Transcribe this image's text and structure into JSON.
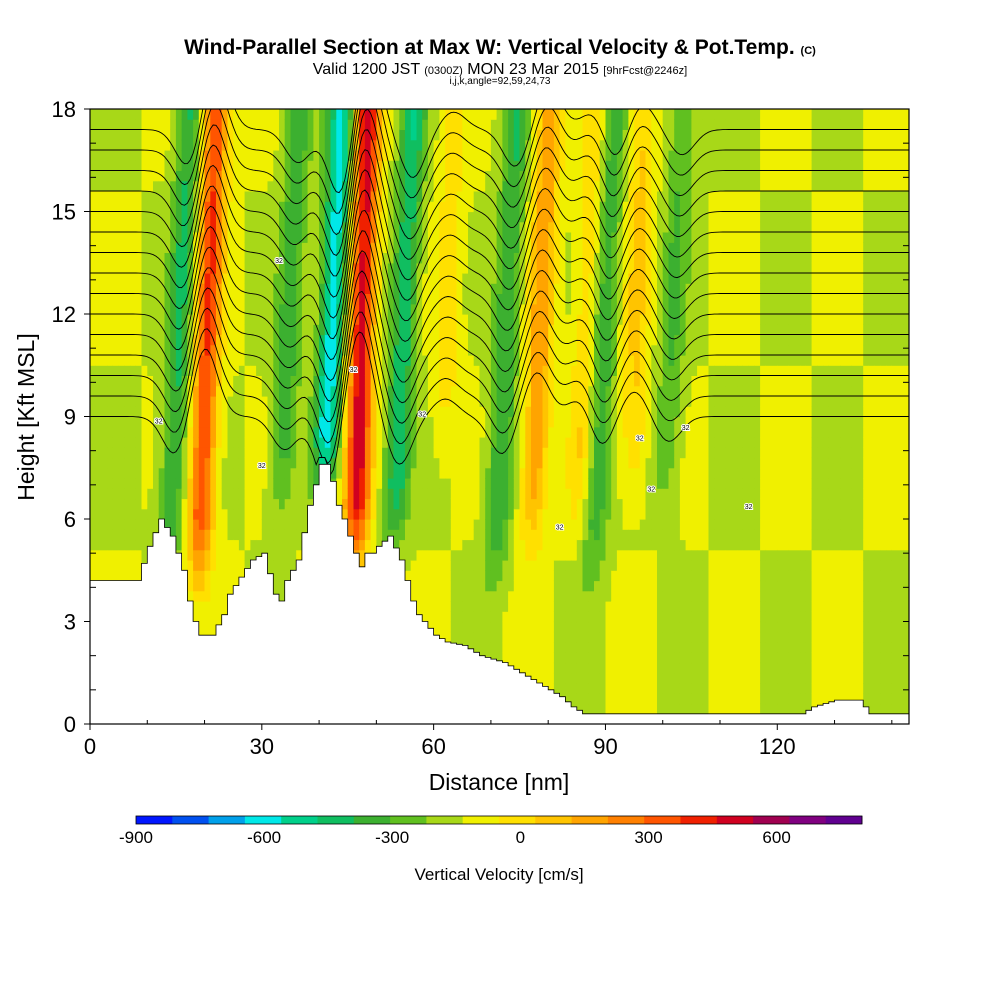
{
  "chart_data": {
    "type": "heatmap",
    "title": "Wind-Parallel Section at Max W: Vertical Velocity & Pot.Temp.",
    "title_mark": "(C)",
    "subtitle_main": "Valid 1200 JST",
    "subtitle_z": "(0300Z)",
    "subtitle_date": "MON 23 Mar 2015",
    "subtitle_fcst": "[9hrFcst@2246z]",
    "subtitle_params": "i,j,k,angle=92,59,24,73",
    "xlabel": "Distance [nm]",
    "ylabel": "Height [Kft MSL]",
    "xlim": [
      0,
      143
    ],
    "ylim": [
      0,
      18
    ],
    "x_ticks": [
      "0",
      "30",
      "60",
      "90",
      "120"
    ],
    "x_tick_values": [
      0,
      30,
      60,
      90,
      120
    ],
    "y_ticks": [
      "0",
      "3",
      "6",
      "9",
      "12",
      "15",
      "18"
    ],
    "y_tick_values": [
      0,
      3,
      6,
      9,
      12,
      15,
      18
    ],
    "colorbar_label": "Vertical Velocity [cm/s]",
    "colorbar_ticks": [
      "-900",
      "-600",
      "-300",
      "0",
      "300",
      "600"
    ],
    "colorbar_tick_values": [
      -900,
      -600,
      -300,
      0,
      300,
      600
    ],
    "colorbar_range": [
      -900,
      800
    ],
    "colorbar_step": 100,
    "colorbar_colors": [
      "#0016ff",
      "#0050f0",
      "#00a0ea",
      "#00e8e8",
      "#00d08a",
      "#10be60",
      "#3cb030",
      "#60c020",
      "#a8d818",
      "#f0f000",
      "#ffe000",
      "#ffc400",
      "#ffa400",
      "#ff8000",
      "#ff5500",
      "#f02000",
      "#d00020",
      "#a00050",
      "#800080",
      "#600090"
    ],
    "terrain_kft": [
      [
        0,
        4.2
      ],
      [
        4,
        4.2
      ],
      [
        8,
        4.2
      ],
      [
        10,
        5.2
      ],
      [
        12,
        6.0
      ],
      [
        14,
        5.5
      ],
      [
        16,
        4.5
      ],
      [
        17,
        3.6
      ],
      [
        18,
        3.0
      ],
      [
        19,
        2.6
      ],
      [
        21,
        2.6
      ],
      [
        23,
        3.2
      ],
      [
        24,
        3.8
      ],
      [
        26,
        4.3
      ],
      [
        28,
        4.8
      ],
      [
        30,
        5.0
      ],
      [
        31,
        4.4
      ],
      [
        32,
        3.8
      ],
      [
        33,
        3.6
      ],
      [
        34,
        4.2
      ],
      [
        36,
        4.8
      ],
      [
        37,
        5.6
      ],
      [
        38,
        6.4
      ],
      [
        39,
        7.0
      ],
      [
        40,
        7.6
      ],
      [
        41,
        7.6
      ],
      [
        42,
        7.1
      ],
      [
        43,
        6.4
      ],
      [
        44,
        6.0
      ],
      [
        45,
        5.5
      ],
      [
        46,
        5.0
      ],
      [
        47,
        4.6
      ],
      [
        48,
        5.0
      ],
      [
        49,
        5.0
      ],
      [
        50,
        5.2
      ],
      [
        52,
        5.5
      ],
      [
        54,
        4.8
      ],
      [
        55,
        4.2
      ],
      [
        56,
        3.6
      ],
      [
        57,
        3.2
      ],
      [
        58,
        3.0
      ],
      [
        59,
        2.8
      ],
      [
        60,
        2.6
      ],
      [
        62,
        2.4
      ],
      [
        65,
        2.3
      ],
      [
        68,
        2.0
      ],
      [
        72,
        1.8
      ],
      [
        74,
        1.6
      ],
      [
        76,
        1.4
      ],
      [
        78,
        1.2
      ],
      [
        80,
        1.0
      ],
      [
        82,
        0.8
      ],
      [
        84,
        0.5
      ],
      [
        86,
        0.3
      ],
      [
        90,
        0.3
      ],
      [
        100,
        0.3
      ],
      [
        110,
        0.3
      ],
      [
        120,
        0.3
      ],
      [
        124,
        0.3
      ],
      [
        126,
        0.5
      ],
      [
        130,
        0.7
      ],
      [
        134,
        0.7
      ],
      [
        136,
        0.3
      ],
      [
        143,
        0.3
      ]
    ],
    "updrafts": [
      {
        "x": 20.0,
        "z_top": 18,
        "z_bottom": 4.0,
        "w_peak": 600,
        "tilt": 2.0
      },
      {
        "x": 47.0,
        "z_top": 18,
        "z_bottom": 4.5,
        "w_peak": 750,
        "tilt": 1.5
      },
      {
        "x": 78.0,
        "z_top": 18,
        "z_bottom": 5.0,
        "w_peak": 380,
        "tilt": 2.2
      },
      {
        "x": 95.0,
        "z_top": 18,
        "z_bottom": 6.5,
        "w_peak": 220,
        "tilt": 1.5
      },
      {
        "x": 86.0,
        "z_top": 18,
        "z_bottom": 5.5,
        "w_peak": 200,
        "tilt": 2.5
      },
      {
        "x": 62.0,
        "z_top": 18,
        "z_bottom": 8.0,
        "w_peak": 150,
        "tilt": 1.5
      }
    ],
    "downdrafts": [
      {
        "x": 15.0,
        "z_top": 18,
        "z_bottom": 4.0,
        "w_peak": -320,
        "tilt": 2.5
      },
      {
        "x": 41.5,
        "z_top": 18,
        "z_bottom": 6.5,
        "w_peak": -560,
        "tilt": 2.5
      },
      {
        "x": 54.0,
        "z_top": 18,
        "z_bottom": 5.0,
        "w_peak": -380,
        "tilt": 2.5
      },
      {
        "x": 34.0,
        "z_top": 18,
        "z_bottom": 6.0,
        "w_peak": -260,
        "tilt": 2.5
      },
      {
        "x": 72.0,
        "z_top": 18,
        "z_bottom": 4.0,
        "w_peak": -300,
        "tilt": 2.5
      },
      {
        "x": 89.0,
        "z_top": 18,
        "z_bottom": 4.0,
        "w_peak": -280,
        "tilt": 2.5
      },
      {
        "x": 101.0,
        "z_top": 18,
        "z_bottom": 6.0,
        "w_peak": -200,
        "tilt": 2.5
      }
    ],
    "theta_contour_base_kft": [
      9.0,
      9.6,
      10.2,
      10.8,
      11.4,
      12.0,
      12.6,
      13.2,
      13.8,
      14.4,
      15.0,
      15.6,
      16.2,
      16.8,
      17.4
    ],
    "theta_label": "32"
  }
}
